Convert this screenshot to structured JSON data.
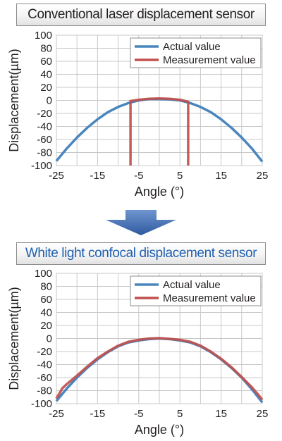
{
  "titles": {
    "top": "Conventional laser displacement sensor",
    "bottom": "White light confocal displacement sensor"
  },
  "colors": {
    "actual": "#4a86be",
    "measurement": "#c0504d",
    "grid": "#c8c8c8",
    "bottom_title": "#1f5fb0",
    "arrow": "#3f6cb0"
  },
  "chart_data": [
    {
      "type": "line",
      "title": "Conventional laser displacement sensor",
      "xlabel": "Angle (°)",
      "ylabel": "Displacement(µm)",
      "xlim": [
        -25,
        25
      ],
      "ylim": [
        -100,
        100
      ],
      "xticks": [
        "-25",
        "-15",
        "-5",
        "5",
        "15",
        "25"
      ],
      "yticks": [
        "100",
        "80",
        "60",
        "40",
        "20",
        "0",
        "-20",
        "-40",
        "-60",
        "-80",
        "-100"
      ],
      "grid": true,
      "legend": "top-right",
      "series": [
        {
          "name": "Actual value",
          "x": [
            -25,
            -22.5,
            -20,
            -17.5,
            -15,
            -12.5,
            -10,
            -7.5,
            -5,
            -2.5,
            0,
            2.5,
            5,
            7.5,
            10,
            12.5,
            15,
            17.5,
            20,
            22.5,
            25
          ],
          "y": [
            -93,
            -74,
            -57,
            -42,
            -29,
            -18,
            -10,
            -4,
            0,
            2,
            2,
            1.5,
            0,
            -4,
            -10,
            -18,
            -29,
            -42,
            -57,
            -74,
            -94
          ]
        },
        {
          "name": "Measurement value",
          "x": [
            -7,
            -7,
            -5,
            -2.5,
            0,
            2.5,
            5,
            7,
            7
          ],
          "y": [
            -100,
            -1,
            1,
            2.5,
            3,
            2.5,
            1,
            -2,
            -100
          ]
        }
      ]
    },
    {
      "type": "line",
      "title": "White light confocal displacement sensor",
      "xlabel": "Angle (°)",
      "ylabel": "Displacement(µm)",
      "xlim": [
        -25,
        25
      ],
      "ylim": [
        -100,
        100
      ],
      "xticks": [
        "-25",
        "-15",
        "-5",
        "5",
        "15",
        "25"
      ],
      "yticks": [
        "100",
        "80",
        "60",
        "40",
        "20",
        "0",
        "-20",
        "-40",
        "-60",
        "-80",
        "-100"
      ],
      "grid": true,
      "legend": "top-right",
      "series": [
        {
          "name": "Actual value",
          "x": [
            -25,
            -22.5,
            -20,
            -17.5,
            -15,
            -12.5,
            -10,
            -7.5,
            -5,
            -2.5,
            0,
            2.5,
            5,
            7.5,
            10,
            12.5,
            15,
            17.5,
            20,
            22.5,
            25
          ],
          "y": [
            -96,
            -77,
            -60,
            -45,
            -32,
            -21,
            -12,
            -6,
            -3,
            -1,
            0,
            -1,
            -3,
            -6,
            -12,
            -21,
            -32,
            -45,
            -60,
            -78,
            -98
          ]
        },
        {
          "name": "Measurement value",
          "x": [
            -25,
            -23.5,
            -22.5,
            -20,
            -17.5,
            -15,
            -12.5,
            -10,
            -7.5,
            -5,
            -2.5,
            0,
            2.5,
            5,
            7.5,
            10,
            12.5,
            15,
            17.5,
            20,
            22.5,
            24,
            25
          ],
          "y": [
            -92,
            -76,
            -70,
            -57,
            -43,
            -30,
            -20,
            -11,
            -5,
            -2,
            0,
            0.5,
            -0.5,
            -2,
            -5,
            -11,
            -20,
            -31,
            -44,
            -59,
            -75,
            -86,
            -94
          ]
        }
      ]
    }
  ]
}
